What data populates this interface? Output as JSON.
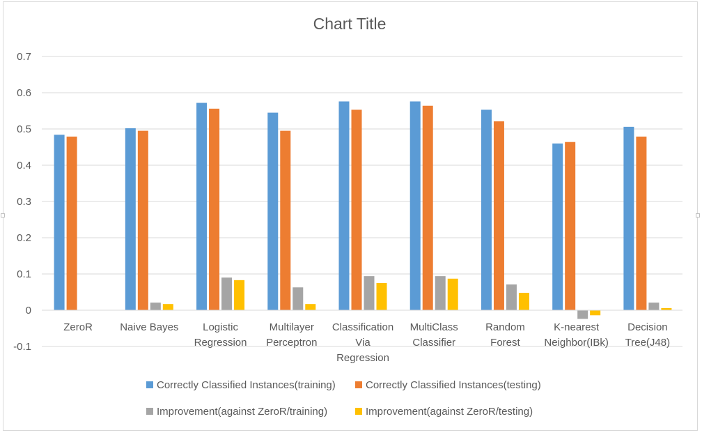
{
  "chart_data": {
    "type": "bar",
    "title": "Chart Title",
    "xlabel": "",
    "ylabel": "",
    "ylim": [
      -0.1,
      0.7
    ],
    "yticks": [
      "0.7",
      "0.6",
      "0.5",
      "0.4",
      "0.3",
      "0.2",
      "0.1",
      "0",
      "-0.1"
    ],
    "grid": true,
    "legend_position": "bottom",
    "categories": [
      [
        "ZeroR"
      ],
      [
        "Naive Bayes"
      ],
      [
        "Logistic",
        "Regression"
      ],
      [
        "Multilayer",
        "Perceptron"
      ],
      [
        "Classification",
        "Via",
        "Regression"
      ],
      [
        "MultiClass",
        "Classifier"
      ],
      [
        "Random",
        "Forest"
      ],
      [
        "K-nearest",
        "Neighbor(IBk)"
      ],
      [
        "Decision",
        "Tree(J48)"
      ]
    ],
    "series": [
      {
        "name": "Correctly Classified Instances(training)",
        "color": "#5b9bd5",
        "values": [
          0.484,
          0.502,
          0.572,
          0.545,
          0.576,
          0.576,
          0.553,
          0.46,
          0.506
        ]
      },
      {
        "name": "Correctly Classified Instances(testing)",
        "color": "#ed7d31",
        "values": [
          0.479,
          0.495,
          0.556,
          0.495,
          0.553,
          0.564,
          0.521,
          0.464,
          0.479
        ]
      },
      {
        "name": "Improvement(against ZeroR/training)",
        "color": "#a5a5a5",
        "values": [
          0,
          0.021,
          0.09,
          0.063,
          0.094,
          0.094,
          0.071,
          -0.024,
          0.021
        ]
      },
      {
        "name": "Improvement(against ZeroR/testing)",
        "color": "#ffc000",
        "values": [
          0,
          0.017,
          0.083,
          0.017,
          0.075,
          0.087,
          0.048,
          -0.014,
          0.006
        ]
      }
    ]
  }
}
